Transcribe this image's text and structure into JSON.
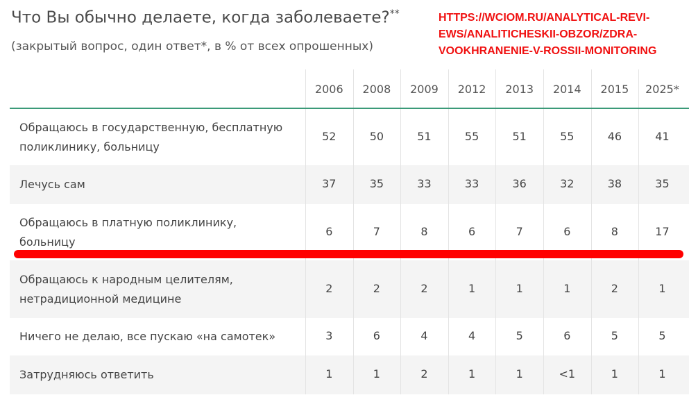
{
  "title": "Что Вы обычно делаете, когда заболеваете?",
  "title_mark": "**",
  "subtitle": "(закрытый вопрос, один ответ*, в % от всех опрошенных)",
  "url_lines": [
    "HTTPS://WCIOM.RU/ANALYTICAL-REVI-",
    "EWS/ANALITICHESKII-OBZOR/ZDRA-",
    "VOOKHRANENIE-V-ROSSII-MONITORING"
  ],
  "table": {
    "header": [
      "2006",
      "2008",
      "2009",
      "2012",
      "2013",
      "2014",
      "2015",
      "2025*"
    ],
    "rows": [
      {
        "label": [
          "Обращаюсь в государственную, бесплатную",
          "поликлинику, больницу"
        ],
        "values": [
          52,
          50,
          51,
          55,
          51,
          55,
          46,
          41
        ]
      },
      {
        "label": [
          "Лечусь сам"
        ],
        "values": [
          37,
          35,
          33,
          33,
          36,
          32,
          38,
          35
        ]
      },
      {
        "label": [
          "Обращаюсь в платную поликлинику,",
          "больницу"
        ],
        "values": [
          6,
          7,
          8,
          6,
          7,
          6,
          8,
          17
        ]
      },
      {
        "label": [
          "Обращаюсь к народным целителям,",
          "нетрадиционной медицине"
        ],
        "values": [
          2,
          2,
          2,
          1,
          1,
          1,
          2,
          1
        ]
      },
      {
        "label": [
          "Ничего не делаю, все пускаю «на самотек»"
        ],
        "values": [
          3,
          6,
          4,
          4,
          5,
          6,
          5,
          5
        ]
      },
      {
        "label": [
          "Затрудняюсь ответить"
        ],
        "values": [
          1,
          1,
          2,
          1,
          1,
          "<1",
          1,
          1
        ]
      }
    ]
  }
}
